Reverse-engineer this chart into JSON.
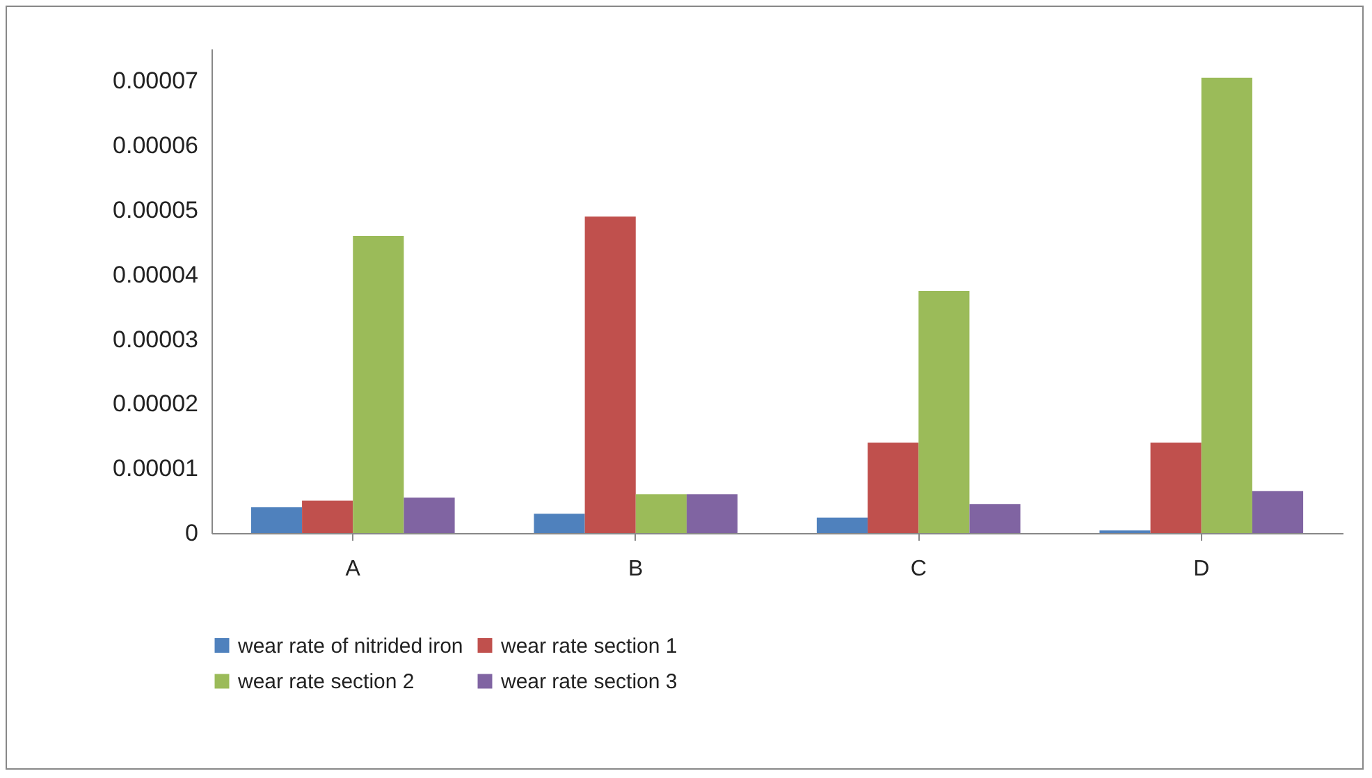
{
  "chart_data": {
    "type": "bar",
    "categories": [
      "A",
      "B",
      "C",
      "D"
    ],
    "series": [
      {
        "name": "wear rate of nitrided iron",
        "color": "#4f81bd",
        "values": [
          4e-06,
          3e-06,
          2.4e-06,
          4e-07
        ]
      },
      {
        "name": "wear rate section 1",
        "color": "#c0504d",
        "values": [
          5e-06,
          4.9e-05,
          1.4e-05,
          1.4e-05
        ]
      },
      {
        "name": "wear rate section 2",
        "color": "#9bbb59",
        "values": [
          4.6e-05,
          6e-06,
          3.75e-05,
          7.05e-05
        ]
      },
      {
        "name": "wear rate section 3",
        "color": "#8064a2",
        "values": [
          5.5e-06,
          6e-06,
          4.5e-06,
          6.5e-06
        ]
      }
    ],
    "ylim": [
      0,
      7.5e-05
    ],
    "yticks": [
      0,
      {
        "value": 1e-05,
        "label": "0.00001"
      },
      {
        "value": 2e-05,
        "label": "0.00002"
      },
      {
        "value": 3e-05,
        "label": "0.00003"
      },
      {
        "value": 4e-05,
        "label": "0.00004"
      },
      {
        "value": 5e-05,
        "label": "0.00005"
      },
      {
        "value": 6e-05,
        "label": "0.00006"
      },
      {
        "value": 7e-05,
        "label": "0.00007"
      }
    ],
    "grid": false,
    "legend": "bottom"
  }
}
